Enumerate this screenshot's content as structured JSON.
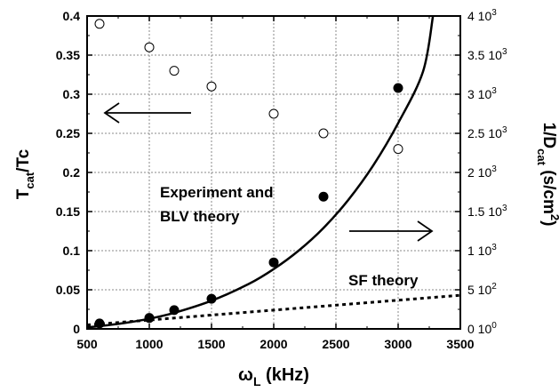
{
  "chart_data": {
    "type": "scatter",
    "xlabel": {
      "main": "ω",
      "sub": "L",
      "rest": " (kHz)"
    },
    "ylabel_left": {
      "main": "T",
      "sub": "cat",
      "rest": "/Tc"
    },
    "ylabel_right": {
      "main": "1/D",
      "sub": "cat",
      "rest": " (s/cm",
      "sup": "2",
      "tail": ")"
    },
    "xlim": [
      500,
      3500
    ],
    "ylim_left": [
      0,
      0.4
    ],
    "ylim_right": [
      0,
      4000
    ],
    "x_ticks": [
      500,
      1000,
      1500,
      2000,
      2500,
      3000,
      3500
    ],
    "x_tick_labels": [
      "500",
      "1000",
      "1500",
      "2000",
      "2500",
      "3000",
      "3500"
    ],
    "y_left_ticks": [
      0,
      0.05,
      0.1,
      0.15,
      0.2,
      0.25,
      0.3,
      0.35,
      0.4
    ],
    "y_left_tick_labels": [
      "0",
      "0.05",
      "0.1",
      "0.15",
      "0.2",
      "0.25",
      "0.3",
      "0.35",
      "0.4"
    ],
    "y_right_ticks": [
      0,
      500,
      1000,
      1500,
      2000,
      2500,
      3000,
      3500,
      4000
    ],
    "y_right_tick_labels": [
      {
        "base": "0 10",
        "exp": "0"
      },
      {
        "base": "5 10",
        "exp": "2"
      },
      {
        "base": "1 10",
        "exp": "3"
      },
      {
        "base": "1.5 10",
        "exp": "3"
      },
      {
        "base": "2 10",
        "exp": "3"
      },
      {
        "base": "2.5 10",
        "exp": "3"
      },
      {
        "base": "3 10",
        "exp": "3"
      },
      {
        "base": "3.5 10",
        "exp": "3"
      },
      {
        "base": "4 10",
        "exp": "3"
      }
    ],
    "grid": true,
    "series": [
      {
        "axis": "left",
        "marker": "open-circle",
        "x": [
          600,
          1000,
          1200,
          1500,
          2000,
          2400,
          3000
        ],
        "y": [
          0.39,
          0.36,
          0.33,
          0.31,
          0.275,
          0.25,
          0.23
        ]
      },
      {
        "axis": "right",
        "marker": "filled-circle",
        "x": [
          600,
          1000,
          1200,
          1500,
          2000,
          2400,
          3000
        ],
        "y": [
          70,
          140,
          240,
          385,
          850,
          1690,
          3080
        ]
      },
      {
        "axis": "right",
        "style": "solid-line",
        "x": [
          500,
          600,
          800,
          1000,
          1200,
          1500,
          1800,
          2000,
          2200,
          2400,
          2600,
          2800,
          3000,
          3200,
          3280
        ],
        "y": [
          20,
          35,
          75,
          130,
          205,
          360,
          575,
          765,
          1000,
          1290,
          1650,
          2090,
          2630,
          3290,
          4000
        ]
      },
      {
        "axis": "right",
        "style": "dotted-line",
        "x": [
          500,
          3500
        ],
        "y": [
          50,
          430
        ]
      }
    ],
    "annotations": {
      "experiment_line1": "Experiment and",
      "experiment_line2": "BLV theory",
      "sf": "SF theory"
    },
    "arrows": [
      {
        "direction": "left",
        "axis": "left"
      },
      {
        "direction": "right",
        "axis": "right"
      }
    ]
  }
}
